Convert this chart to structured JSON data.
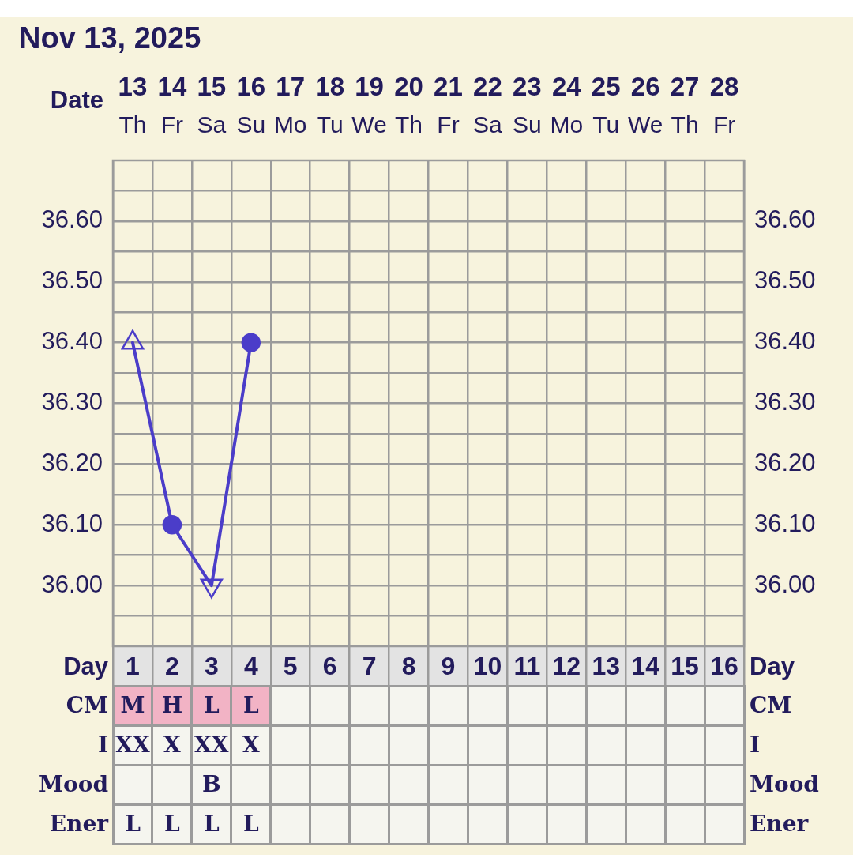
{
  "chart_data": [
    {
      "type": "line",
      "title": "Nov 13, 2025",
      "xlabel": "Date",
      "categories": [
        "13\nTh",
        "14\nFr",
        "15\nSa",
        "16\nSu",
        "17\nMo",
        "18\nTu",
        "19\nWe",
        "20\nTh",
        "21\nFr",
        "22\nSa",
        "23\nSu",
        "24\nMo",
        "25\nTu",
        "26\nWe",
        "27\nTh",
        "28\nFr"
      ],
      "x2label": "Day",
      "x2lim": [
        0.5,
        16.5
      ],
      "x2ticks": [
        1,
        2,
        3,
        4,
        5,
        6,
        7,
        8,
        9,
        10,
        11,
        12,
        13,
        14,
        15,
        16
      ],
      "ylim": [
        35.9,
        36.7
      ],
      "yticks": [
        {
          "value": 35.95,
          "label": null
        },
        {
          "value": 36.0,
          "label": "36.00"
        },
        {
          "value": 36.05,
          "label": null
        },
        {
          "value": 36.1,
          "label": "36.10"
        },
        {
          "value": 36.15,
          "label": null
        },
        {
          "value": 36.2,
          "label": "36.20"
        },
        {
          "value": 36.25,
          "label": null
        },
        {
          "value": 36.3,
          "label": "36.30"
        },
        {
          "value": 36.35,
          "label": null
        },
        {
          "value": 36.4,
          "label": "36.40"
        },
        {
          "value": 36.45,
          "label": null
        },
        {
          "value": 36.5,
          "label": "36.50"
        },
        {
          "value": 36.55,
          "label": null
        },
        {
          "value": 36.6,
          "label": "36.60"
        },
        {
          "value": 36.65,
          "label": null
        }
      ],
      "y2lim": [
        35.9,
        36.7
      ],
      "y2ticks": [
        {
          "value": 35.95,
          "label": null
        },
        {
          "value": 36.0,
          "label": "36.00"
        },
        {
          "value": 36.05,
          "label": null
        },
        {
          "value": 36.1,
          "label": "36.10"
        },
        {
          "value": 36.15,
          "label": null
        },
        {
          "value": 36.2,
          "label": "36.20"
        },
        {
          "value": 36.25,
          "label": null
        },
        {
          "value": 36.3,
          "label": "36.30"
        },
        {
          "value": 36.35,
          "label": null
        },
        {
          "value": 36.4,
          "label": "36.40"
        },
        {
          "value": 36.45,
          "label": null
        },
        {
          "value": 36.5,
          "label": "36.50"
        },
        {
          "value": 36.55,
          "label": null
        },
        {
          "value": 36.6,
          "label": "36.60"
        },
        {
          "value": 36.65,
          "label": null
        }
      ],
      "grid": true,
      "series": [
        {
          "type": "line",
          "color": "#4b3dc9",
          "values": [
            36.4,
            36.1,
            36.0,
            36.4,
            null,
            null,
            null,
            null,
            null,
            null,
            null,
            null,
            null,
            null,
            null,
            null
          ]
        },
        {
          "type": "scatter",
          "color": "#4b3dc9",
          "marker": "circle",
          "values": [
            null,
            36.1,
            null,
            36.4,
            null,
            null,
            null,
            null,
            null,
            null,
            null,
            null,
            null,
            null,
            null,
            null
          ]
        },
        {
          "type": "scatter",
          "color": "#4b3dc9",
          "marker": "triangle",
          "values": [
            36.4,
            null,
            null,
            null,
            null,
            null,
            null,
            null,
            null,
            null,
            null,
            null,
            null,
            null,
            null,
            null
          ]
        },
        {
          "type": "scatter",
          "color": "#4b3dc9",
          "marker": "triangle-down",
          "values": [
            null,
            null,
            36.0,
            null,
            null,
            null,
            null,
            null,
            null,
            null,
            null,
            null,
            null,
            null,
            null,
            null
          ]
        }
      ]
    },
    {
      "type": "other",
      "y_categories": [
        "CM",
        "I",
        "Mood",
        "Ener"
      ],
      "y2_categories": [
        "CM",
        "I",
        "Mood",
        "Ener"
      ],
      "cell_labels": [
        [
          "M",
          "H",
          "L",
          "L",
          null,
          null,
          null,
          null,
          null,
          null,
          null,
          null,
          null,
          null,
          null,
          null
        ],
        [
          "XX",
          "X",
          "XX",
          "X",
          null,
          null,
          null,
          null,
          null,
          null,
          null,
          null,
          null,
          null,
          null,
          null
        ],
        [
          null,
          null,
          "B",
          null,
          null,
          null,
          null,
          null,
          null,
          null,
          null,
          null,
          null,
          null,
          null,
          null
        ],
        [
          "L",
          "L",
          "L",
          "L",
          null,
          null,
          null,
          null,
          null,
          null,
          null,
          null,
          null,
          null,
          null,
          null
        ]
      ],
      "colors": [
        [
          "#f2b3c5",
          "#f2b3c5",
          "#f2b3c5",
          "#f2b3c5",
          null,
          null,
          null,
          null,
          null,
          null,
          null,
          null,
          null,
          null,
          null,
          null
        ],
        [
          null,
          null,
          null,
          null,
          null,
          null,
          null,
          null,
          null,
          null,
          null,
          null,
          null,
          null,
          null,
          null
        ],
        [
          null,
          null,
          null,
          null,
          null,
          null,
          null,
          null,
          null,
          null,
          null,
          null,
          null,
          null,
          null,
          null
        ],
        [
          null,
          null,
          null,
          null,
          null,
          null,
          null,
          null,
          null,
          null,
          null,
          null,
          null,
          null,
          null,
          null
        ]
      ]
    }
  ]
}
